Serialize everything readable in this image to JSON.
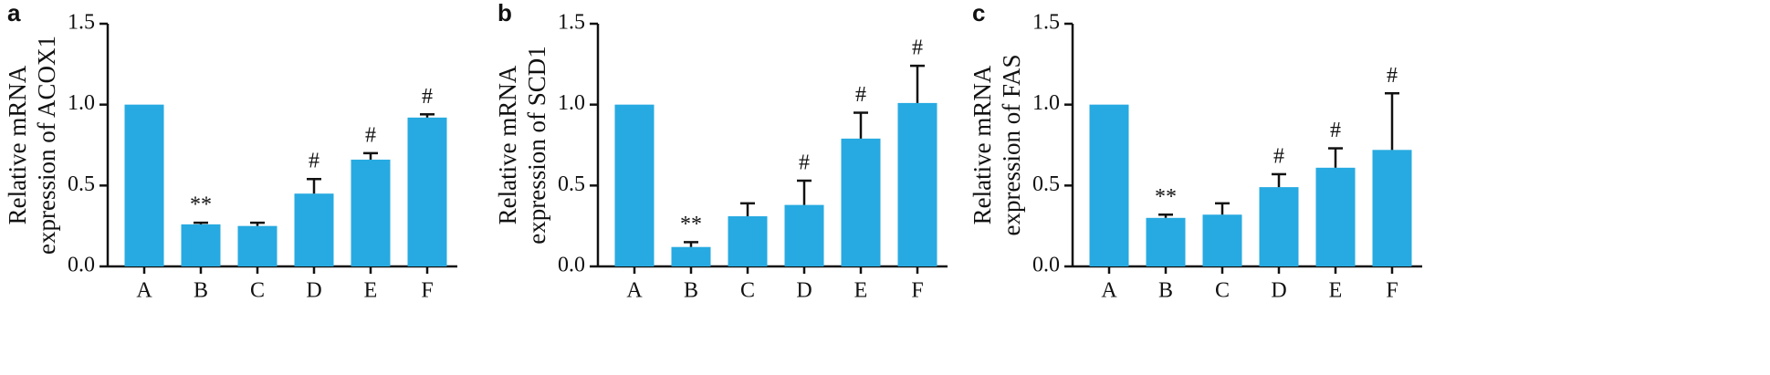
{
  "chart_data": [
    {
      "type": "bar",
      "panel_label": "a",
      "ylabel": [
        "Relative mRNA",
        "expression of ACOX1"
      ],
      "categories": [
        "A",
        "B",
        "C",
        "D",
        "E",
        "F"
      ],
      "values": [
        1.0,
        0.26,
        0.25,
        0.45,
        0.66,
        0.92
      ],
      "errors": [
        null,
        0.01,
        0.02,
        0.09,
        0.04,
        0.02
      ],
      "annotations": [
        null,
        "**",
        null,
        "#",
        "#",
        "#"
      ],
      "color": "#27aae1",
      "ylim": [
        0,
        1.5
      ],
      "yticks": [
        {
          "value": 0,
          "label": "0.0"
        },
        {
          "value": 0.5,
          "label": "0.5"
        },
        {
          "value": 1,
          "label": "1.0"
        },
        {
          "value": 1.5,
          "label": "1.5"
        }
      ]
    },
    {
      "type": "bar",
      "panel_label": "b",
      "ylabel": [
        "Relative mRNA",
        "expression of SCD1"
      ],
      "categories": [
        "A",
        "B",
        "C",
        "D",
        "E",
        "F"
      ],
      "values": [
        1.0,
        0.12,
        0.31,
        0.38,
        0.79,
        1.01
      ],
      "errors": [
        null,
        0.03,
        0.08,
        0.15,
        0.16,
        0.23
      ],
      "annotations": [
        null,
        "**",
        null,
        "#",
        "#",
        "#"
      ],
      "color": "#27aae1",
      "ylim": [
        0,
        1.5
      ],
      "yticks": [
        {
          "value": 0,
          "label": "0.0"
        },
        {
          "value": 0.5,
          "label": "0.5"
        },
        {
          "value": 1,
          "label": "1.0"
        },
        {
          "value": 1.5,
          "label": "1.5"
        }
      ]
    },
    {
      "type": "bar",
      "panel_label": "c",
      "ylabel": [
        "Relative mRNA",
        "expression of FAS"
      ],
      "categories": [
        "A",
        "B",
        "C",
        "D",
        "E",
        "F"
      ],
      "values": [
        1.0,
        0.3,
        0.32,
        0.49,
        0.61,
        0.72
      ],
      "errors": [
        null,
        0.02,
        0.07,
        0.08,
        0.12,
        0.35
      ],
      "annotations": [
        null,
        "**",
        null,
        "#",
        "#",
        "#"
      ],
      "color": "#27aae1",
      "ylim": [
        0,
        1.5
      ],
      "yticks": [
        {
          "value": 0,
          "label": "0.0"
        },
        {
          "value": 0.5,
          "label": "0.5"
        },
        {
          "value": 1,
          "label": "1.0"
        },
        {
          "value": 1.5,
          "label": "1.5"
        }
      ]
    }
  ]
}
